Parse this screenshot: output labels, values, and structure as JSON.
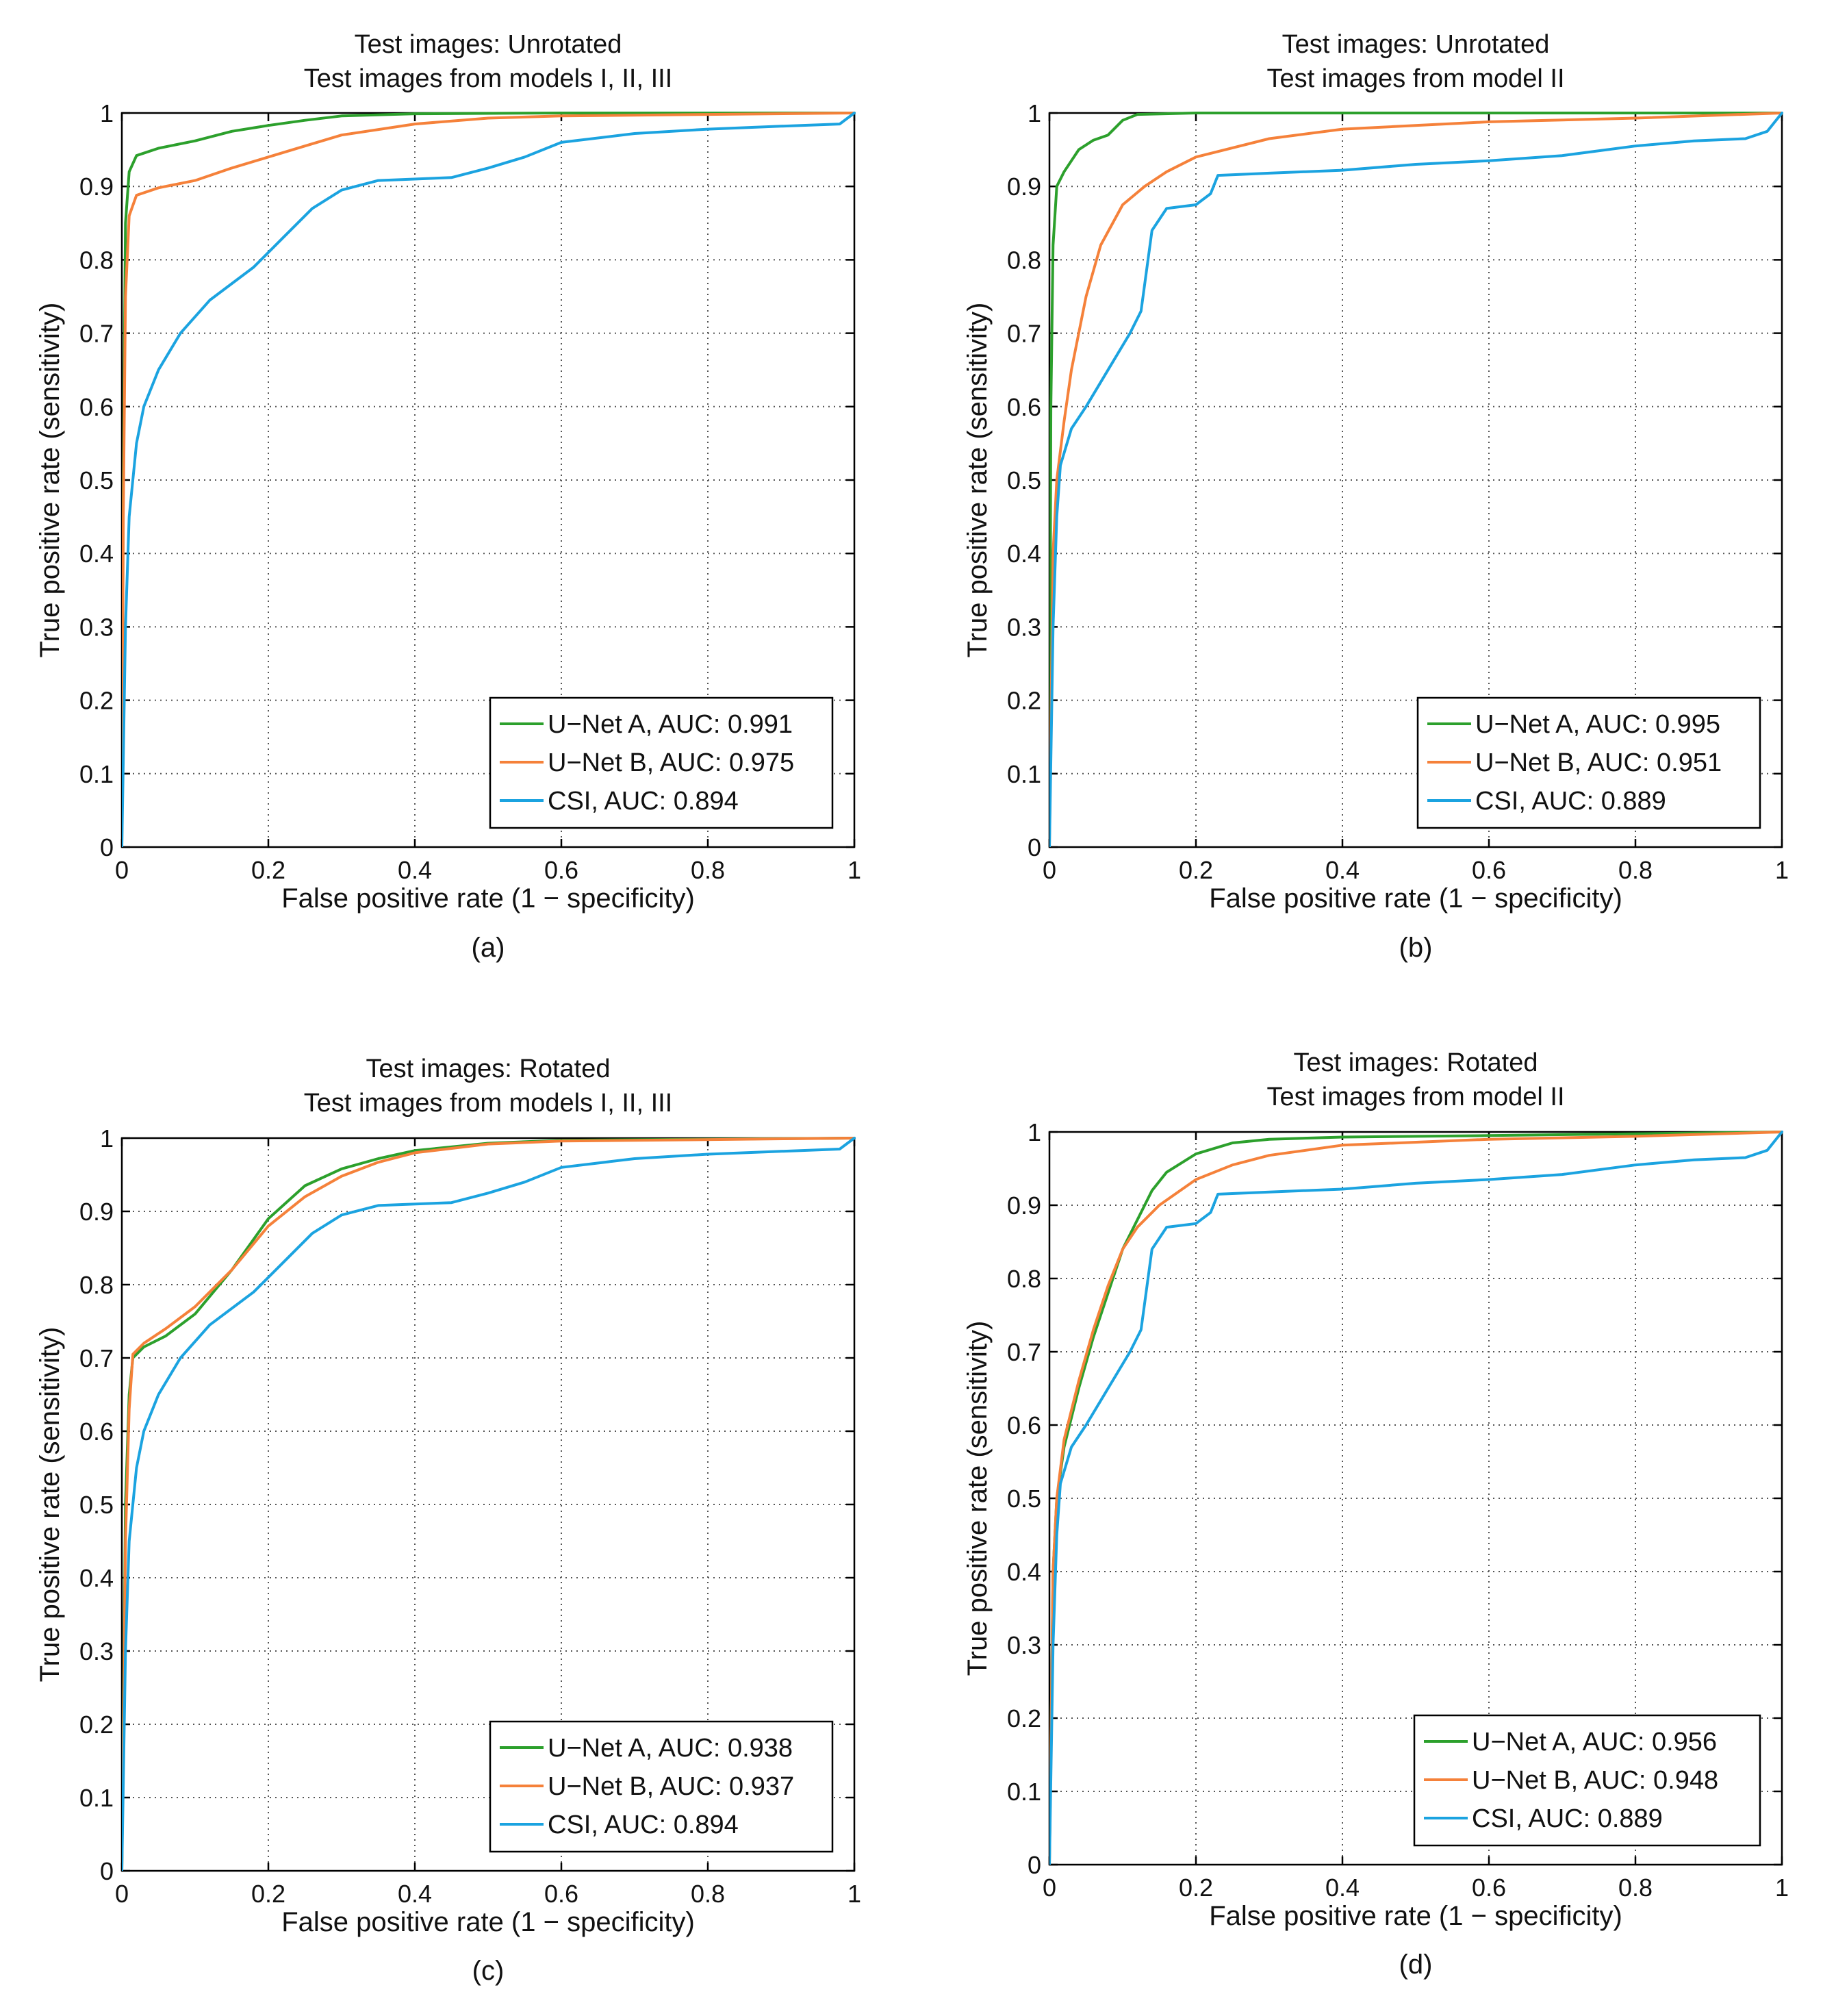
{
  "colors": {
    "unet_a": "#2ca02c",
    "unet_b": "#f5813a",
    "csi": "#1ba3e0",
    "grid": "#555555",
    "axis": "#000000"
  },
  "chart_data": [
    {
      "type": "line",
      "panel_label": "(a)",
      "title": [
        "Test images: Unrotated",
        "Test images from models I, II, III"
      ],
      "xlabel": "False positive rate (1 − specificity)",
      "ylabel": "True positive rate (sensitivity)",
      "xlim": [
        0,
        1
      ],
      "ylim": [
        0,
        1
      ],
      "xticks": [
        "0",
        "0.2",
        "0.4",
        "0.6",
        "0.8",
        "1"
      ],
      "yticks": [
        "0",
        "0.1",
        "0.2",
        "0.3",
        "0.4",
        "0.5",
        "0.6",
        "0.7",
        "0.8",
        "0.9",
        "1"
      ],
      "grid": true,
      "legend_position": "bottom-right",
      "series": [
        {
          "name": "U−Net A, AUC: 0.991",
          "color_key": "unet_a",
          "points": [
            [
              0,
              0
            ],
            [
              0.002,
              0.5
            ],
            [
              0.005,
              0.85
            ],
            [
              0.01,
              0.92
            ],
            [
              0.02,
              0.942
            ],
            [
              0.05,
              0.952
            ],
            [
              0.1,
              0.962
            ],
            [
              0.15,
              0.975
            ],
            [
              0.2,
              0.983
            ],
            [
              0.25,
              0.99
            ],
            [
              0.3,
              0.996
            ],
            [
              0.4,
              0.999
            ],
            [
              0.6,
              1.0
            ],
            [
              1,
              1.0
            ]
          ]
        },
        {
          "name": "U−Net B, AUC: 0.975",
          "color_key": "unet_b",
          "points": [
            [
              0,
              0
            ],
            [
              0.002,
              0.45
            ],
            [
              0.005,
              0.75
            ],
            [
              0.01,
              0.86
            ],
            [
              0.02,
              0.888
            ],
            [
              0.05,
              0.898
            ],
            [
              0.1,
              0.908
            ],
            [
              0.15,
              0.925
            ],
            [
              0.2,
              0.94
            ],
            [
              0.25,
              0.955
            ],
            [
              0.3,
              0.97
            ],
            [
              0.4,
              0.985
            ],
            [
              0.5,
              0.993
            ],
            [
              0.6,
              0.996
            ],
            [
              0.8,
              0.998
            ],
            [
              1,
              1.0
            ]
          ]
        },
        {
          "name": "CSI, AUC: 0.894",
          "color_key": "csi",
          "points": [
            [
              0,
              0
            ],
            [
              0.005,
              0.3
            ],
            [
              0.01,
              0.45
            ],
            [
              0.02,
              0.55
            ],
            [
              0.03,
              0.6
            ],
            [
              0.05,
              0.65
            ],
            [
              0.08,
              0.7
            ],
            [
              0.12,
              0.745
            ],
            [
              0.18,
              0.79
            ],
            [
              0.22,
              0.83
            ],
            [
              0.26,
              0.87
            ],
            [
              0.3,
              0.895
            ],
            [
              0.35,
              0.908
            ],
            [
              0.45,
              0.912
            ],
            [
              0.5,
              0.925
            ],
            [
              0.55,
              0.94
            ],
            [
              0.6,
              0.96
            ],
            [
              0.7,
              0.972
            ],
            [
              0.8,
              0.978
            ],
            [
              0.9,
              0.982
            ],
            [
              0.98,
              0.985
            ],
            [
              1,
              1.0
            ]
          ]
        }
      ]
    },
    {
      "type": "line",
      "panel_label": "(b)",
      "title": [
        "Test images: Unrotated",
        "Test images from model II"
      ],
      "xlabel": "False positive rate (1 − specificity)",
      "ylabel": "True positive rate (sensitivity)",
      "xlim": [
        0,
        1
      ],
      "ylim": [
        0,
        1
      ],
      "xticks": [
        "0",
        "0.2",
        "0.4",
        "0.6",
        "0.8",
        "1"
      ],
      "yticks": [
        "0",
        "0.1",
        "0.2",
        "0.3",
        "0.4",
        "0.5",
        "0.6",
        "0.7",
        "0.8",
        "0.9",
        "1"
      ],
      "grid": true,
      "legend_position": "bottom-right",
      "series": [
        {
          "name": "U−Net A, AUC: 0.995",
          "color_key": "unet_a",
          "points": [
            [
              0,
              0
            ],
            [
              0.002,
              0.6
            ],
            [
              0.005,
              0.82
            ],
            [
              0.01,
              0.9
            ],
            [
              0.02,
              0.92
            ],
            [
              0.04,
              0.95
            ],
            [
              0.06,
              0.963
            ],
            [
              0.08,
              0.97
            ],
            [
              0.1,
              0.99
            ],
            [
              0.12,
              0.998
            ],
            [
              0.2,
              1.0
            ],
            [
              1,
              1.0
            ]
          ]
        },
        {
          "name": "U−Net B, AUC: 0.951",
          "color_key": "unet_b",
          "points": [
            [
              0,
              0
            ],
            [
              0.005,
              0.4
            ],
            [
              0.01,
              0.5
            ],
            [
              0.02,
              0.58
            ],
            [
              0.03,
              0.65
            ],
            [
              0.05,
              0.75
            ],
            [
              0.07,
              0.82
            ],
            [
              0.1,
              0.875
            ],
            [
              0.13,
              0.9
            ],
            [
              0.16,
              0.92
            ],
            [
              0.2,
              0.94
            ],
            [
              0.3,
              0.965
            ],
            [
              0.4,
              0.978
            ],
            [
              0.6,
              0.988
            ],
            [
              0.8,
              0.993
            ],
            [
              1,
              1.0
            ]
          ]
        },
        {
          "name": "CSI, AUC: 0.889",
          "color_key": "csi",
          "points": [
            [
              0,
              0
            ],
            [
              0.005,
              0.3
            ],
            [
              0.01,
              0.45
            ],
            [
              0.015,
              0.52
            ],
            [
              0.03,
              0.57
            ],
            [
              0.05,
              0.6
            ],
            [
              0.08,
              0.65
            ],
            [
              0.11,
              0.7
            ],
            [
              0.125,
              0.73
            ],
            [
              0.14,
              0.84
            ],
            [
              0.16,
              0.87
            ],
            [
              0.2,
              0.875
            ],
            [
              0.22,
              0.89
            ],
            [
              0.23,
              0.915
            ],
            [
              0.3,
              0.918
            ],
            [
              0.4,
              0.922
            ],
            [
              0.5,
              0.93
            ],
            [
              0.6,
              0.935
            ],
            [
              0.7,
              0.942
            ],
            [
              0.8,
              0.955
            ],
            [
              0.88,
              0.962
            ],
            [
              0.95,
              0.965
            ],
            [
              0.98,
              0.975
            ],
            [
              1,
              1.0
            ]
          ]
        }
      ]
    },
    {
      "type": "line",
      "panel_label": "(c)",
      "title": [
        "Test images: Rotated",
        "Test images from models I, II, III"
      ],
      "xlabel": "False positive rate (1 − specificity)",
      "ylabel": "True positive rate (sensitivity)",
      "xlim": [
        0,
        1
      ],
      "ylim": [
        0,
        1
      ],
      "xticks": [
        "0",
        "0.2",
        "0.4",
        "0.6",
        "0.8",
        "1"
      ],
      "yticks": [
        "0",
        "0.1",
        "0.2",
        "0.3",
        "0.4",
        "0.5",
        "0.6",
        "0.7",
        "0.8",
        "0.9",
        "1"
      ],
      "grid": true,
      "legend_position": "bottom-right",
      "series": [
        {
          "name": "U−Net A, AUC: 0.938",
          "color_key": "unet_a",
          "points": [
            [
              0,
              0
            ],
            [
              0.005,
              0.5
            ],
            [
              0.01,
              0.65
            ],
            [
              0.015,
              0.7
            ],
            [
              0.03,
              0.715
            ],
            [
              0.06,
              0.73
            ],
            [
              0.1,
              0.76
            ],
            [
              0.15,
              0.82
            ],
            [
              0.2,
              0.89
            ],
            [
              0.25,
              0.935
            ],
            [
              0.3,
              0.958
            ],
            [
              0.35,
              0.972
            ],
            [
              0.4,
              0.983
            ],
            [
              0.5,
              0.993
            ],
            [
              0.6,
              0.997
            ],
            [
              1,
              1.0
            ]
          ]
        },
        {
          "name": "U−Net B, AUC: 0.937",
          "color_key": "unet_b",
          "points": [
            [
              0,
              0
            ],
            [
              0.005,
              0.45
            ],
            [
              0.01,
              0.63
            ],
            [
              0.015,
              0.705
            ],
            [
              0.03,
              0.72
            ],
            [
              0.06,
              0.74
            ],
            [
              0.1,
              0.77
            ],
            [
              0.15,
              0.82
            ],
            [
              0.2,
              0.88
            ],
            [
              0.25,
              0.92
            ],
            [
              0.3,
              0.948
            ],
            [
              0.35,
              0.967
            ],
            [
              0.4,
              0.98
            ],
            [
              0.5,
              0.992
            ],
            [
              0.6,
              0.996
            ],
            [
              1,
              1.0
            ]
          ]
        },
        {
          "name": "CSI, AUC: 0.894",
          "color_key": "csi",
          "points": [
            [
              0,
              0
            ],
            [
              0.005,
              0.3
            ],
            [
              0.01,
              0.45
            ],
            [
              0.02,
              0.55
            ],
            [
              0.03,
              0.6
            ],
            [
              0.05,
              0.65
            ],
            [
              0.08,
              0.7
            ],
            [
              0.12,
              0.745
            ],
            [
              0.18,
              0.79
            ],
            [
              0.22,
              0.83
            ],
            [
              0.26,
              0.87
            ],
            [
              0.3,
              0.895
            ],
            [
              0.35,
              0.908
            ],
            [
              0.45,
              0.912
            ],
            [
              0.5,
              0.925
            ],
            [
              0.55,
              0.94
            ],
            [
              0.6,
              0.96
            ],
            [
              0.7,
              0.972
            ],
            [
              0.8,
              0.978
            ],
            [
              0.9,
              0.982
            ],
            [
              0.98,
              0.985
            ],
            [
              1,
              1.0
            ]
          ]
        }
      ]
    },
    {
      "type": "line",
      "panel_label": "(d)",
      "title": [
        "Test images: Rotated",
        "Test images from model II"
      ],
      "xlabel": "False positive rate (1 − specificity)",
      "ylabel": "True positive rate (sensitivity)",
      "xlim": [
        0,
        1
      ],
      "ylim": [
        0,
        1
      ],
      "xticks": [
        "0",
        "0.2",
        "0.4",
        "0.6",
        "0.8",
        "1"
      ],
      "yticks": [
        "0",
        "0.1",
        "0.2",
        "0.3",
        "0.4",
        "0.5",
        "0.6",
        "0.7",
        "0.8",
        "0.9",
        "1"
      ],
      "grid": true,
      "legend_position": "bottom-right",
      "series": [
        {
          "name": "U−Net A, AUC: 0.956",
          "color_key": "unet_a",
          "points": [
            [
              0,
              0
            ],
            [
              0.005,
              0.4
            ],
            [
              0.01,
              0.5
            ],
            [
              0.02,
              0.57
            ],
            [
              0.04,
              0.65
            ],
            [
              0.06,
              0.72
            ],
            [
              0.08,
              0.78
            ],
            [
              0.1,
              0.84
            ],
            [
              0.12,
              0.88
            ],
            [
              0.14,
              0.92
            ],
            [
              0.16,
              0.945
            ],
            [
              0.2,
              0.97
            ],
            [
              0.25,
              0.985
            ],
            [
              0.3,
              0.99
            ],
            [
              0.4,
              0.993
            ],
            [
              0.6,
              0.995
            ],
            [
              1,
              1.0
            ]
          ]
        },
        {
          "name": "U−Net B, AUC: 0.948",
          "color_key": "unet_b",
          "points": [
            [
              0,
              0
            ],
            [
              0.005,
              0.4
            ],
            [
              0.01,
              0.5
            ],
            [
              0.02,
              0.58
            ],
            [
              0.04,
              0.66
            ],
            [
              0.06,
              0.73
            ],
            [
              0.08,
              0.79
            ],
            [
              0.1,
              0.84
            ],
            [
              0.12,
              0.87
            ],
            [
              0.15,
              0.9
            ],
            [
              0.2,
              0.935
            ],
            [
              0.25,
              0.955
            ],
            [
              0.3,
              0.968
            ],
            [
              0.4,
              0.982
            ],
            [
              0.6,
              0.99
            ],
            [
              0.8,
              0.994
            ],
            [
              1,
              1.0
            ]
          ]
        },
        {
          "name": "CSI, AUC: 0.889",
          "color_key": "csi",
          "points": [
            [
              0,
              0
            ],
            [
              0.005,
              0.3
            ],
            [
              0.01,
              0.45
            ],
            [
              0.015,
              0.52
            ],
            [
              0.03,
              0.57
            ],
            [
              0.05,
              0.6
            ],
            [
              0.08,
              0.65
            ],
            [
              0.11,
              0.7
            ],
            [
              0.125,
              0.73
            ],
            [
              0.14,
              0.84
            ],
            [
              0.16,
              0.87
            ],
            [
              0.2,
              0.875
            ],
            [
              0.22,
              0.89
            ],
            [
              0.23,
              0.915
            ],
            [
              0.3,
              0.918
            ],
            [
              0.4,
              0.922
            ],
            [
              0.5,
              0.93
            ],
            [
              0.6,
              0.935
            ],
            [
              0.7,
              0.942
            ],
            [
              0.8,
              0.955
            ],
            [
              0.88,
              0.962
            ],
            [
              0.95,
              0.965
            ],
            [
              0.98,
              0.975
            ],
            [
              1,
              1.0
            ]
          ]
        }
      ]
    }
  ]
}
